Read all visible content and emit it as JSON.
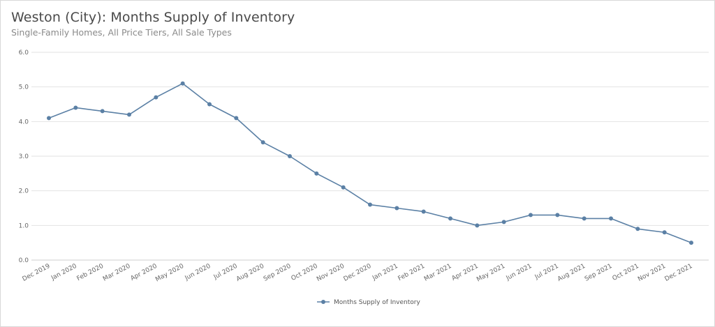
{
  "chart_data": {
    "type": "line",
    "title": "Weston (City): Months Supply of Inventory",
    "subtitle": "Single-Family Homes, All Price Tiers, All Sale Types",
    "xlabel": "",
    "ylabel": "",
    "ylim": [
      0,
      6
    ],
    "yticks": [
      "0.0",
      "1.0",
      "2.0",
      "3.0",
      "4.0",
      "5.0",
      "6.0"
    ],
    "grid": true,
    "legend_position": "bottom-center",
    "categories": [
      "Dec 2019",
      "Jan 2020",
      "Feb 2020",
      "Mar 2020",
      "Apr 2020",
      "May 2020",
      "Jun 2020",
      "Jul 2020",
      "Aug 2020",
      "Sep 2020",
      "Oct 2020",
      "Nov 2020",
      "Dec 2020",
      "Jan 2021",
      "Feb 2021",
      "Mar 2021",
      "Apr 2021",
      "May 2021",
      "Jun 2021",
      "Jul 2021",
      "Aug 2021",
      "Sep 2021",
      "Oct 2021",
      "Nov 2021",
      "Dec 2021"
    ],
    "series": [
      {
        "name": "Months Supply of Inventory",
        "color": "#5b80a5",
        "values": [
          4.1,
          4.4,
          4.3,
          4.2,
          4.7,
          5.1,
          4.5,
          4.1,
          3.4,
          3.0,
          2.5,
          2.1,
          1.6,
          1.5,
          1.4,
          1.2,
          1.0,
          1.1,
          1.3,
          1.3,
          1.2,
          1.2,
          0.9,
          0.8,
          0.5
        ]
      }
    ]
  }
}
